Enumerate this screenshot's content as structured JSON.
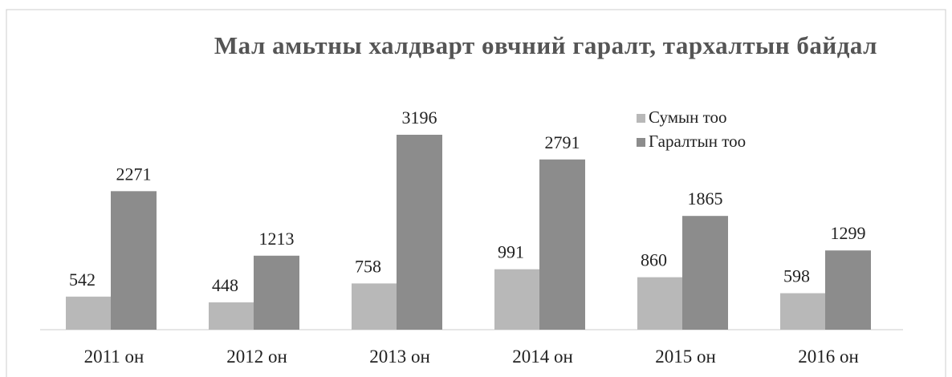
{
  "chart_data": {
    "type": "bar",
    "title": "Мал амьтны халдварт өвчний гаралт, тархалтын байдал",
    "categories": [
      "2011 он",
      "2012 он",
      "2013 он",
      "2014 он",
      "2015 он",
      "2016 он"
    ],
    "series": [
      {
        "name": "Сумын тоо",
        "color": "#b8b8b8",
        "values": [
          542,
          448,
          758,
          991,
          860,
          598
        ]
      },
      {
        "name": "Гаралтын тоо",
        "color": "#8c8c8c",
        "values": [
          2271,
          1213,
          3196,
          2791,
          1865,
          1299
        ]
      }
    ],
    "legend": "top-right"
  }
}
